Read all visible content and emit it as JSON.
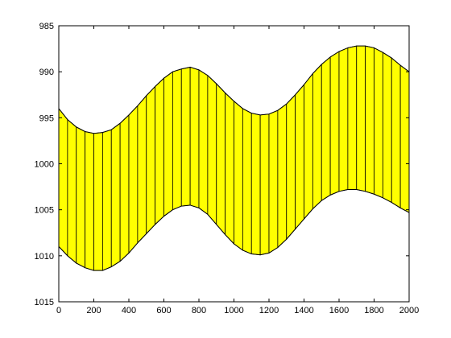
{
  "chart_data": {
    "type": "area",
    "title": "",
    "xlabel": "",
    "ylabel": "",
    "xlim": [
      0,
      2000
    ],
    "ylim": [
      985,
      1015
    ],
    "y_reversed": true,
    "grid": false,
    "legend": "none",
    "xticks": [
      0,
      200,
      400,
      600,
      800,
      1000,
      1200,
      1400,
      1600,
      1800,
      2000
    ],
    "xtick_labels": [
      "0",
      "200",
      "400",
      "600",
      "800",
      "1000",
      "1200",
      "1400",
      "1600",
      "1800",
      "2000"
    ],
    "yticks": [
      985,
      990,
      995,
      1000,
      1005,
      1010,
      1015
    ],
    "ytick_labels": [
      "985",
      "990",
      "995",
      "1000",
      "1005",
      "1010",
      "1015"
    ],
    "fill_color": "#ffff00",
    "edge_color": "#000000",
    "x": [
      0,
      50,
      100,
      150,
      200,
      250,
      300,
      350,
      400,
      450,
      500,
      550,
      600,
      650,
      700,
      750,
      800,
      850,
      900,
      950,
      1000,
      1050,
      1100,
      1150,
      1200,
      1250,
      1300,
      1350,
      1400,
      1450,
      1500,
      1550,
      1600,
      1650,
      1700,
      1750,
      1800,
      1850,
      1900,
      1950,
      2000
    ],
    "series": [
      {
        "values": [
          994.0,
          995.2,
          996.0,
          996.5,
          996.7,
          996.6,
          996.3,
          995.6,
          994.7,
          993.7,
          992.6,
          991.6,
          990.7,
          990.0,
          989.7,
          989.5,
          989.8,
          990.4,
          991.3,
          992.3,
          993.2,
          994.0,
          994.5,
          994.7,
          994.6,
          994.2,
          993.5,
          992.5,
          991.4,
          990.2,
          989.2,
          988.4,
          987.8,
          987.4,
          987.2,
          987.2,
          987.4,
          987.9,
          988.5,
          989.3,
          990.0
        ]
      },
      {
        "values": [
          1009.0,
          1010.0,
          1010.8,
          1011.3,
          1011.6,
          1011.6,
          1011.2,
          1010.6,
          1009.7,
          1008.6,
          1007.6,
          1006.6,
          1005.7,
          1005.0,
          1004.6,
          1004.5,
          1004.8,
          1005.5,
          1006.6,
          1007.7,
          1008.7,
          1009.4,
          1009.8,
          1009.9,
          1009.7,
          1009.1,
          1008.2,
          1007.1,
          1006.0,
          1004.9,
          1004.0,
          1003.4,
          1003.0,
          1002.8,
          1002.8,
          1003.0,
          1003.3,
          1003.7,
          1004.2,
          1004.8,
          1005.3
        ]
      }
    ]
  }
}
